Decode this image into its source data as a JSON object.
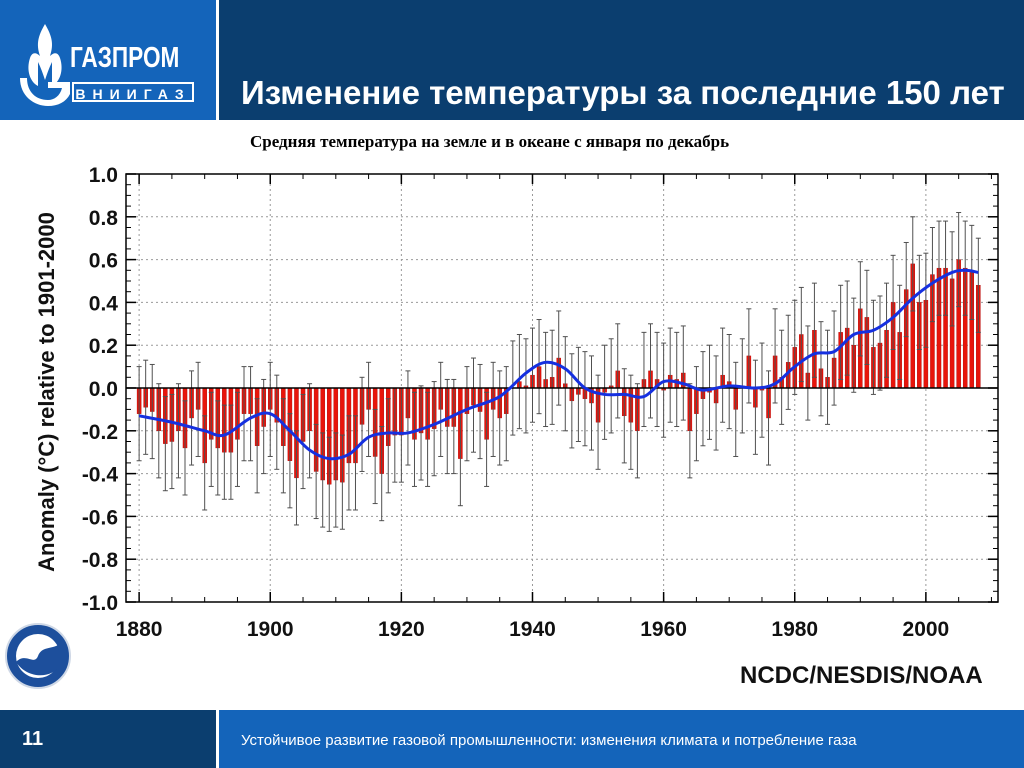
{
  "header": {
    "logo_word": "ГАЗПРОМ",
    "logo_sub": "ВНИИГАЗ",
    "title": "Изменение температуры за последние 150 лет"
  },
  "chart_data": {
    "type": "bar",
    "title": "Средняя температура на земле и в океане с января по декабрь",
    "ylabel": "Anomaly (°C) relative to 1901-2000",
    "xlabel": "",
    "source": "NCDC/NESDIS/NOAA",
    "xlim": [
      1878,
      2011
    ],
    "ylim": [
      -1.0,
      1.0
    ],
    "x_ticks": [
      1880,
      1900,
      1920,
      1940,
      1960,
      1980,
      2000
    ],
    "y_ticks": [
      -1.0,
      -0.8,
      -0.6,
      -0.4,
      -0.2,
      0.0,
      0.2,
      0.4,
      0.6,
      0.8,
      1.0
    ],
    "grid": true,
    "colors": {
      "bars": "#e8150b",
      "error_bars": "#505050",
      "smooth": "#1530e0"
    },
    "series": [
      {
        "kind": "bar",
        "x": [
          1880,
          1881,
          1882,
          1883,
          1884,
          1885,
          1886,
          1887,
          1888,
          1889,
          1890,
          1891,
          1892,
          1893,
          1894,
          1895,
          1896,
          1897,
          1898,
          1899,
          1900,
          1901,
          1902,
          1903,
          1904,
          1905,
          1906,
          1907,
          1908,
          1909,
          1910,
          1911,
          1912,
          1913,
          1914,
          1915,
          1916,
          1917,
          1918,
          1919,
          1920,
          1921,
          1922,
          1923,
          1924,
          1925,
          1926,
          1927,
          1928,
          1929,
          1930,
          1931,
          1932,
          1933,
          1934,
          1935,
          1936,
          1937,
          1938,
          1939,
          1940,
          1941,
          1942,
          1943,
          1944,
          1945,
          1946,
          1947,
          1948,
          1949,
          1950,
          1951,
          1952,
          1953,
          1954,
          1955,
          1956,
          1957,
          1958,
          1959,
          1960,
          1961,
          1962,
          1963,
          1964,
          1965,
          1966,
          1967,
          1968,
          1969,
          1970,
          1971,
          1972,
          1973,
          1974,
          1975,
          1976,
          1977,
          1978,
          1979,
          1980,
          1981,
          1982,
          1983,
          1984,
          1985,
          1986,
          1987,
          1988,
          1989,
          1990,
          1991,
          1992,
          1993,
          1994,
          1995,
          1996,
          1997,
          1998,
          1999,
          2000,
          2001,
          2002,
          2003,
          2004,
          2005,
          2006,
          2007,
          2008
        ],
        "values": [
          -0.12,
          -0.09,
          -0.11,
          -0.2,
          -0.26,
          -0.25,
          -0.2,
          -0.28,
          -0.14,
          -0.1,
          -0.35,
          -0.24,
          -0.28,
          -0.3,
          -0.3,
          -0.24,
          -0.12,
          -0.12,
          -0.27,
          -0.18,
          -0.1,
          -0.16,
          -0.27,
          -0.34,
          -0.42,
          -0.25,
          -0.2,
          -0.39,
          -0.43,
          -0.45,
          -0.43,
          -0.44,
          -0.35,
          -0.35,
          -0.17,
          -0.1,
          -0.32,
          -0.4,
          -0.27,
          -0.22,
          -0.22,
          -0.14,
          -0.24,
          -0.21,
          -0.24,
          -0.19,
          -0.1,
          -0.18,
          -0.18,
          -0.33,
          -0.12,
          -0.08,
          -0.11,
          -0.24,
          -0.1,
          -0.14,
          -0.12,
          0.0,
          0.03,
          0.01,
          0.06,
          0.1,
          0.04,
          0.05,
          0.14,
          0.02,
          -0.06,
          -0.03,
          -0.05,
          -0.07,
          -0.16,
          -0.02,
          0.01,
          0.08,
          -0.13,
          -0.16,
          -0.2,
          0.04,
          0.08,
          0.04,
          -0.01,
          0.06,
          0.04,
          0.07,
          -0.2,
          -0.12,
          -0.05,
          -0.02,
          -0.07,
          0.06,
          0.03,
          -0.1,
          0.01,
          0.15,
          -0.09,
          -0.01,
          -0.14,
          0.15,
          0.05,
          0.12,
          0.19,
          0.25,
          0.07,
          0.27,
          0.09,
          0.05,
          0.14,
          0.26,
          0.28,
          0.2,
          0.37,
          0.33,
          0.19,
          0.21,
          0.27,
          0.4,
          0.26,
          0.46,
          0.58,
          0.4,
          0.41,
          0.53,
          0.56,
          0.56,
          0.51,
          0.6,
          0.56,
          0.54,
          0.48
        ],
        "error": 0.22
      },
      {
        "kind": "line",
        "x": [
          1880,
          1885,
          1890,
          1893,
          1897,
          1900,
          1903,
          1906,
          1909,
          1912,
          1915,
          1918,
          1921,
          1925,
          1930,
          1935,
          1939,
          1942,
          1945,
          1948,
          1951,
          1954,
          1957,
          1960,
          1963,
          1966,
          1970,
          1974,
          1977,
          1980,
          1983,
          1986,
          1989,
          1992,
          1995,
          1998,
          2001,
          2004,
          2006,
          2008
        ],
        "values": [
          -0.13,
          -0.16,
          -0.2,
          -0.22,
          -0.14,
          -0.12,
          -0.2,
          -0.29,
          -0.33,
          -0.31,
          -0.23,
          -0.21,
          -0.21,
          -0.17,
          -0.1,
          -0.04,
          0.07,
          0.12,
          0.09,
          0.0,
          -0.03,
          -0.03,
          -0.04,
          0.03,
          0.02,
          -0.01,
          0.01,
          0.0,
          0.02,
          0.1,
          0.16,
          0.17,
          0.25,
          0.27,
          0.33,
          0.42,
          0.49,
          0.54,
          0.55,
          0.54
        ]
      }
    ]
  },
  "footer": {
    "page_number": "11",
    "caption": "Устойчивое развитие газовой  промышленности: изменения климата и потребление газа"
  }
}
